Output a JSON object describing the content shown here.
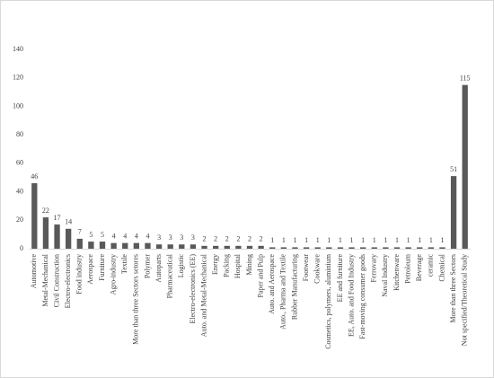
{
  "chart_data": {
    "type": "bar",
    "categories": [
      "Automotive",
      "Metal-Mechanical",
      "Civil Construction",
      "Electro-electronics",
      "Food industry",
      "Aerospace",
      "Furniture",
      "Agro-industry",
      "Textile",
      "More than three Sectors setores",
      "Polymer",
      "Autoparts",
      "Pharmaceutical",
      "Logistic",
      "Electro-electronics (EE)",
      "Auto. and Metal-Mechanical",
      "Energy",
      "Packing",
      "Hospital",
      "Mining",
      "Paper and Pulp",
      "Auto. and Aerospace",
      "Auto., Pharma and Textile",
      "Rubber Manufacturing",
      "Footwear",
      "Cookware",
      "Cosmetics, polymers, aluminium",
      "EE and furniture",
      "EE, Auto. and Food Industry",
      "Fast-moving consumer goods",
      "Ferrovary",
      "Naval Industry",
      "Kitchenware",
      "Petroleum",
      "Beverage",
      "ceramic",
      "Chemical",
      "More than three Sectors",
      "Not specified/Theoretical Study"
    ],
    "values": [
      46,
      22,
      17,
      14,
      7,
      5,
      5,
      4,
      4,
      4,
      4,
      3,
      3,
      3,
      3,
      2,
      2,
      2,
      2,
      2,
      2,
      1,
      1,
      1,
      1,
      1,
      1,
      1,
      1,
      1,
      1,
      1,
      1,
      1,
      1,
      1,
      1,
      51,
      115
    ],
    "color": "#595959",
    "ylim": [
      0,
      140
    ],
    "yticks": [
      0,
      20,
      40,
      60,
      80,
      100,
      120,
      140
    ],
    "grid": false
  }
}
